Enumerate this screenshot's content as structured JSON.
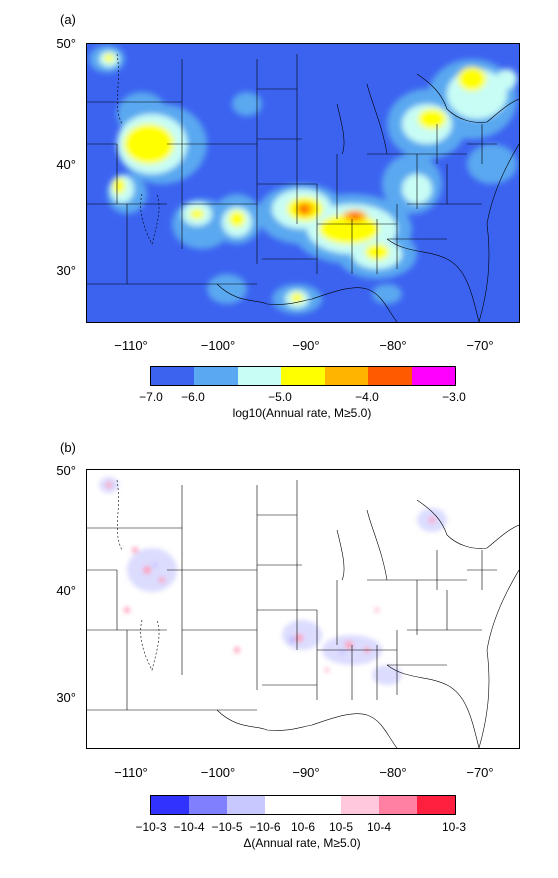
{
  "panel_a": {
    "label": "(a)",
    "lat_labels": [
      "50°",
      "40°",
      "30°"
    ],
    "lon_labels": [
      "−110°",
      "−100°",
      "−90°",
      "−80°",
      "−70°"
    ],
    "colorbar": {
      "colors": [
        "#3b63f0",
        "#5aa8f0",
        "#c8fdf5",
        "#ffff00",
        "#ffb400",
        "#ff5a00",
        "#ff00ff"
      ],
      "ticks": [
        "−7.0",
        "−6.0",
        "−5.0",
        "−4.0",
        "−3.0"
      ],
      "title": "log10(Annual rate, M≥5.0)"
    }
  },
  "panel_b": {
    "label": "(b)",
    "lat_labels": [
      "50°",
      "40°",
      "30°"
    ],
    "lon_labels": [
      "−110°",
      "−100°",
      "−90°",
      "−80°",
      "−70°"
    ],
    "colorbar": {
      "colors": [
        "#3232ff",
        "#8080ff",
        "#c8c8ff",
        "#ffffff",
        "#ffffff",
        "#ffc8dc",
        "#ff80a0",
        "#ff2040"
      ],
      "ticks": [
        "−10-3",
        "−10-4",
        "−10-5",
        "−10-6",
        "10-6",
        "10-5",
        "10-4",
        "10-3"
      ],
      "title": "Δ(Annual rate, M≥5.0)"
    }
  }
}
